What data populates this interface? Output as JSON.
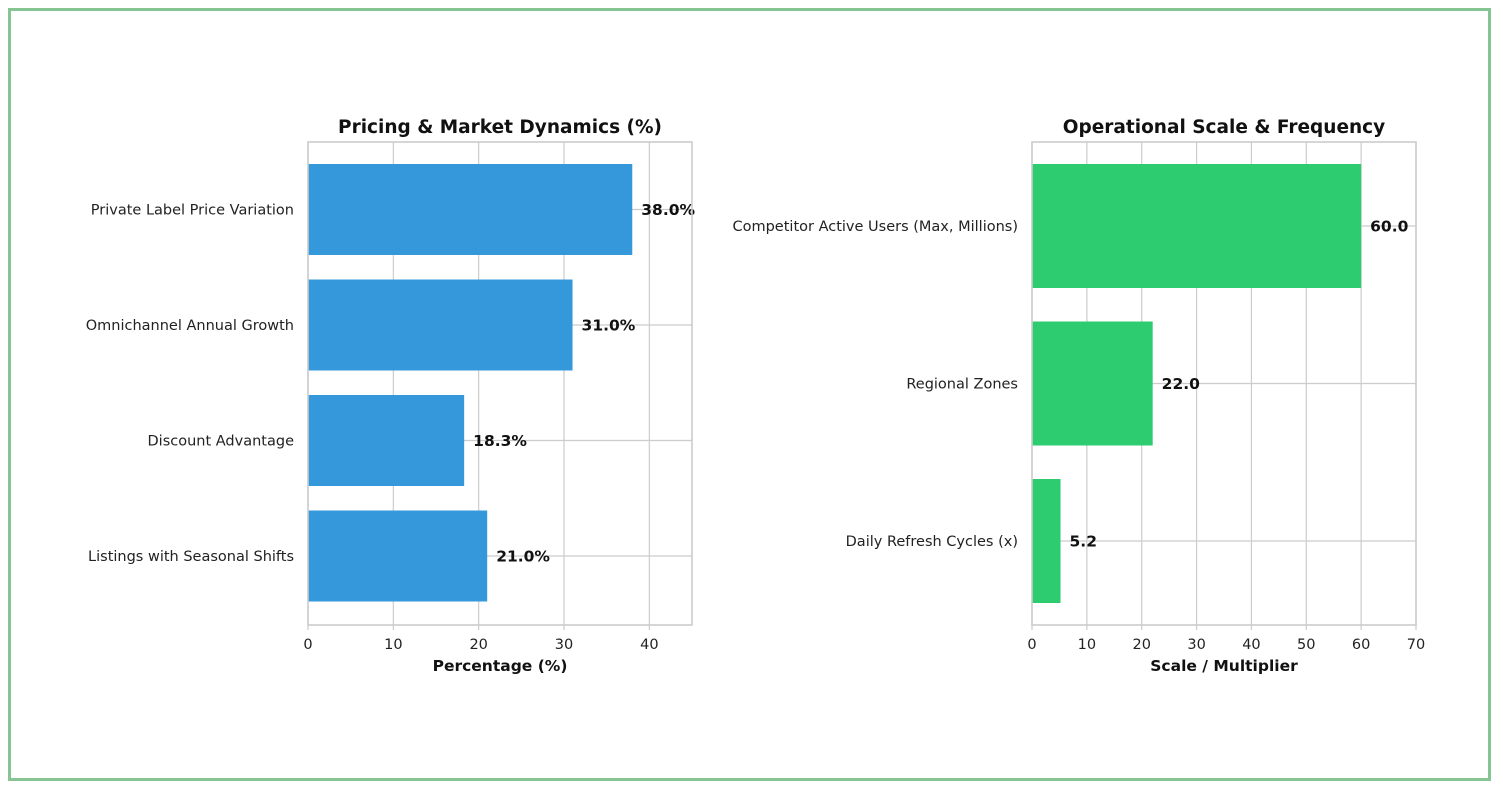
{
  "chart_data": [
    {
      "type": "bar",
      "orientation": "horizontal",
      "title": "Pricing & Market Dynamics (%)",
      "xlabel": "Percentage (%)",
      "ylabel": "",
      "categories": [
        "Private Label Price Variation",
        "Omnichannel Annual Growth",
        "Discount Advantage",
        "Listings with Seasonal Shifts"
      ],
      "values": [
        38.0,
        31.0,
        18.3,
        21.0
      ],
      "value_labels": [
        "38.0%",
        "31.0%",
        "18.3%",
        "21.0%"
      ],
      "xlim": [
        0,
        45
      ],
      "xticks": [
        0,
        10,
        20,
        30,
        40
      ],
      "color": "#3498db",
      "grid": true
    },
    {
      "type": "bar",
      "orientation": "horizontal",
      "title": "Operational Scale & Frequency",
      "xlabel": "Scale / Multiplier",
      "ylabel": "",
      "categories": [
        "Competitor Active Users (Max, Millions)",
        "Regional Zones",
        "Daily Refresh Cycles (x)"
      ],
      "values": [
        60.0,
        22.0,
        5.2
      ],
      "value_labels": [
        "60.0",
        "22.0",
        "5.2"
      ],
      "xlim": [
        0,
        70
      ],
      "xticks": [
        0,
        10,
        20,
        30,
        40,
        50,
        60,
        70
      ],
      "color": "#2ecc71",
      "grid": true
    }
  ]
}
